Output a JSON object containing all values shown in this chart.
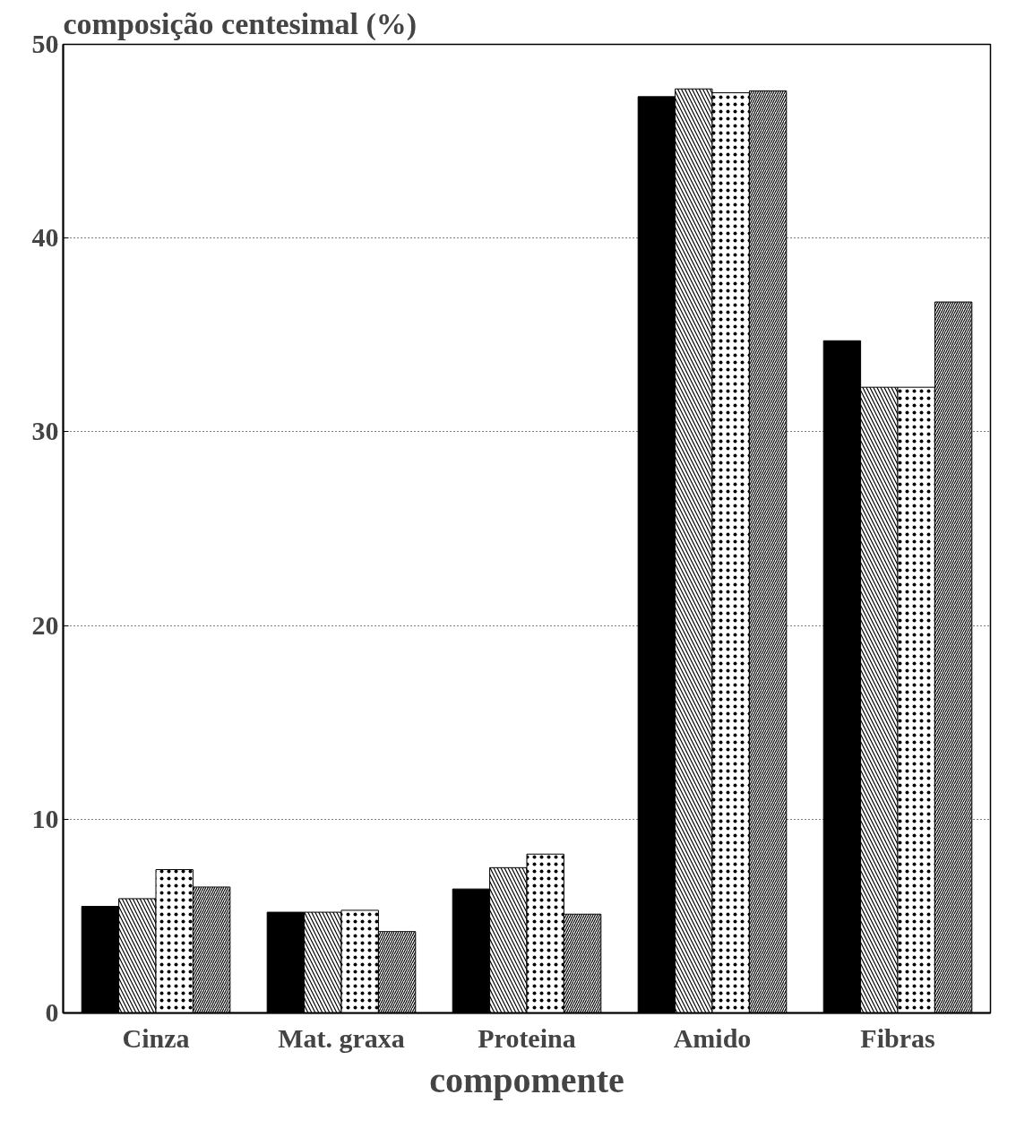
{
  "chart_data": {
    "type": "bar",
    "title": "composição centesimal (%)",
    "xlabel": "compomente",
    "categories": [
      "Cinza",
      "Mat. graxa",
      "Proteina",
      "Amido",
      "Fibras"
    ],
    "series": [
      {
        "color": "#000000",
        "values": [
          5.5,
          5.2,
          6.4,
          47.3,
          34.7
        ]
      },
      {
        "color": "#ffffff",
        "values": [
          5.9,
          5.2,
          7.5,
          47.7,
          32.3
        ]
      },
      {
        "color": "#ffffff",
        "values": [
          7.4,
          5.3,
          8.2,
          47.5,
          32.3
        ]
      },
      {
        "color": "#ffffff",
        "values": [
          6.5,
          4.2,
          5.1,
          47.6,
          36.7
        ]
      }
    ],
    "ylim": [
      0,
      50
    ],
    "yticks": [
      0,
      10,
      20,
      30,
      40,
      50
    ],
    "grid": "y"
  }
}
